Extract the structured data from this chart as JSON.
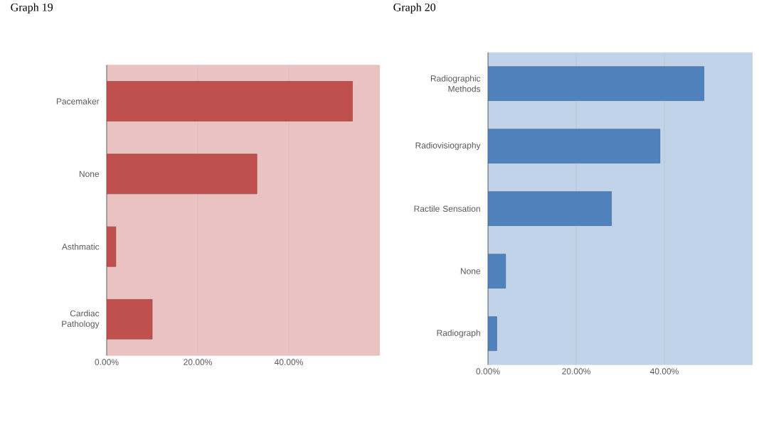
{
  "chart_data": [
    {
      "type": "bar",
      "title": "Graph 19",
      "orientation": "horizontal",
      "categories": [
        "Pacemaker",
        "None",
        "Asthmatic",
        "Cardiac Pathology"
      ],
      "values": [
        54,
        33,
        2,
        10
      ],
      "color": "#c0504d",
      "xlim": [
        0,
        60
      ],
      "xticks": [
        {
          "value": 0,
          "label": "0.00%"
        },
        {
          "value": 20,
          "label": "20.00%"
        },
        {
          "value": 40,
          "label": "40.00%"
        }
      ],
      "grid": "x"
    },
    {
      "type": "bar",
      "title": "Graph 20",
      "orientation": "horizontal",
      "categories": [
        "Radiographic Methods",
        "Radiovisiography",
        "Ractile Sensation",
        "None",
        "Radiograph"
      ],
      "values": [
        49,
        39,
        28,
        4,
        2
      ],
      "color": "#4f81bd",
      "xlim": [
        0,
        60
      ],
      "xticks": [
        {
          "value": 0,
          "label": "0.00%"
        },
        {
          "value": 20,
          "label": "20.00%"
        },
        {
          "value": 40,
          "label": "40.00%"
        }
      ],
      "grid": "x"
    }
  ]
}
